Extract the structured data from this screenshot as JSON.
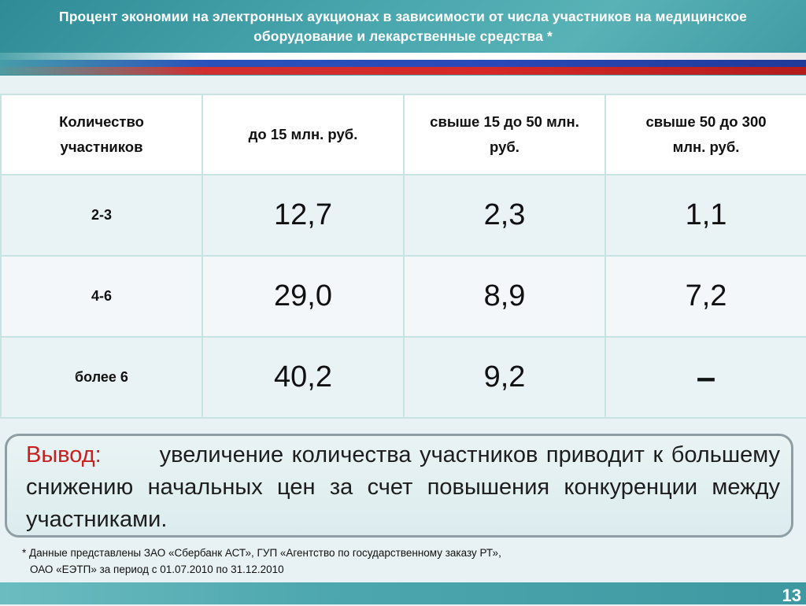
{
  "header": {
    "title_line1": "Процент экономии на электронных аукционах в зависимости от числа участников на  медицинское",
    "title_line2": "оборудование и лекарственные средства *"
  },
  "table": {
    "columns": [
      [
        "Количество",
        "участников"
      ],
      [
        "до 15 млн. руб."
      ],
      [
        "свыше 15 до 50 млн.",
        "руб."
      ],
      [
        "свыше 50 до 300",
        "млн. руб."
      ]
    ],
    "rows": [
      {
        "label": "2-3",
        "values": [
          "12,7",
          "2,3",
          "1,1"
        ]
      },
      {
        "label": "4-6",
        "values": [
          "29,0",
          "8,9",
          "7,2"
        ]
      },
      {
        "label": "более 6",
        "values": [
          "40,2",
          "9,2",
          "–"
        ]
      }
    ]
  },
  "conclusion": {
    "lead": "Вывод:",
    "text": "увеличение количества участников приводит к большему снижению  начальных цен за счет повышения конкуренции между участниками."
  },
  "footnote": {
    "line1": "* Данные представлены  ЗАО «Сбербанк  АСТ», ГУП «Агентство по государственному заказу РТ»,",
    "line2": "ОАО «ЕЭТП» за период с 01.07.2010 по 31.12.2010"
  },
  "page_number": "13",
  "colors": {
    "header": "#4aa7ae",
    "stripe_white": "#ffffff",
    "stripe_blue": "#2a49b8",
    "stripe_red": "#d62828",
    "accent_red": "#c62020"
  }
}
